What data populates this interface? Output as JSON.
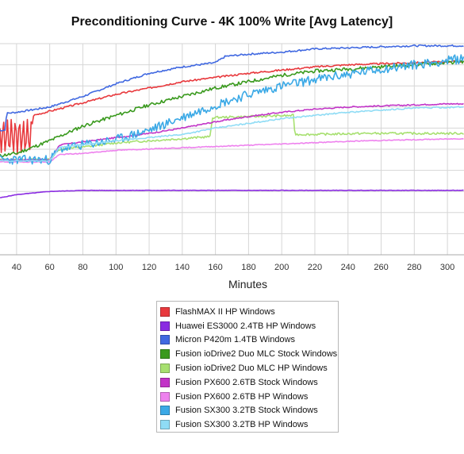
{
  "chart_data": {
    "type": "line",
    "title": "Preconditioning Curve - 4K 100% Write [Avg Latency]",
    "xlabel": "Minutes",
    "ylabel": "",
    "xlim": [
      30,
      310
    ],
    "ylim": [
      0,
      10
    ],
    "xticks": [
      40,
      60,
      80,
      100,
      120,
      140,
      160,
      180,
      200,
      220,
      240,
      260,
      280,
      300
    ],
    "grid": true,
    "legend": "bottom-center",
    "series": [
      {
        "name": "FlashMAX II HP Windows",
        "color": "#e8393d",
        "x": [
          30,
          40,
          49,
          50,
          60,
          80,
          100,
          120,
          140,
          160,
          180,
          200,
          220,
          240,
          260,
          280,
          300,
          310
        ],
        "y": [
          5.6,
          5.6,
          5.6,
          6.6,
          6.8,
          7.2,
          7.6,
          7.9,
          8.2,
          8.4,
          8.6,
          8.75,
          8.9,
          9.0,
          9.05,
          9.1,
          9.15,
          9.15
        ],
        "noise": 0.04,
        "seed": 3,
        "osc": {
          "from": 30,
          "to": 50,
          "amp": 0.8
        }
      },
      {
        "name": "Huawei ES3000 2.4TB HP Windows",
        "color": "#8a2be2",
        "x": [
          30,
          40,
          60,
          80,
          100,
          150,
          200,
          250,
          310
        ],
        "y": [
          2.7,
          2.85,
          3.0,
          3.05,
          3.05,
          3.05,
          3.05,
          3.05,
          3.05
        ],
        "noise": 0.01,
        "seed": 5
      },
      {
        "name": "Micron P420m 1.4TB Windows",
        "color": "#4169e1",
        "x": [
          30,
          33,
          34,
          40,
          60,
          80,
          100,
          120,
          140,
          160,
          166,
          180,
          200,
          220,
          240,
          260,
          280,
          300,
          310
        ],
        "y": [
          5.9,
          5.9,
          6.7,
          6.75,
          7.0,
          7.5,
          8.1,
          8.6,
          8.9,
          9.1,
          9.4,
          9.5,
          9.6,
          9.75,
          9.8,
          9.85,
          9.9,
          9.9,
          9.9
        ],
        "noise": 0.04,
        "seed": 7
      },
      {
        "name": "Fusion ioDrive2 Duo MLC Stock Windows",
        "color": "#3a9a1e",
        "x": [
          30,
          40,
          50,
          60,
          80,
          100,
          120,
          140,
          160,
          180,
          200,
          220,
          240,
          260,
          280,
          300,
          310
        ],
        "y": [
          4.7,
          4.8,
          5.1,
          5.4,
          6.1,
          6.6,
          7.1,
          7.5,
          7.9,
          8.2,
          8.5,
          8.7,
          8.8,
          8.9,
          9.0,
          9.1,
          9.15
        ],
        "noise": 0.08,
        "seed": 11
      },
      {
        "name": "Fusion ioDrive2 Duo MLC HP Windows",
        "color": "#a7e070",
        "x": [
          30,
          60,
          66,
          80,
          100,
          120,
          140,
          157,
          158,
          207,
          208,
          220,
          250,
          280,
          310
        ],
        "y": [
          4.5,
          4.5,
          5.0,
          5.1,
          5.3,
          5.4,
          5.5,
          5.6,
          6.5,
          6.6,
          5.7,
          5.7,
          5.75,
          5.75,
          5.75
        ],
        "noise": 0.05,
        "seed": 13
      },
      {
        "name": "Fusion PX600 2.6TB Stock Windows",
        "color": "#c234c7",
        "x": [
          30,
          60,
          66,
          80,
          100,
          120,
          140,
          160,
          180,
          200,
          220,
          240,
          260,
          280,
          300,
          310
        ],
        "y": [
          4.5,
          4.5,
          5.2,
          5.35,
          5.55,
          5.75,
          6.0,
          6.3,
          6.55,
          6.75,
          6.9,
          7.0,
          7.05,
          7.1,
          7.15,
          7.15
        ],
        "noise": 0.03,
        "seed": 17
      },
      {
        "name": "Fusion PX600 2.6TB HP Windows",
        "color": "#ee82ee",
        "x": [
          30,
          60,
          66,
          80,
          100,
          150,
          200,
          250,
          310
        ],
        "y": [
          4.4,
          4.4,
          4.75,
          4.8,
          4.95,
          5.1,
          5.25,
          5.4,
          5.5
        ],
        "noise": 0.02,
        "seed": 19
      },
      {
        "name": "Fusion SX300 3.2TB Stock Windows",
        "color": "#3ba9e6",
        "x": [
          30,
          60,
          66,
          80,
          100,
          120,
          140,
          160,
          180,
          200,
          220,
          240,
          260,
          280,
          300,
          310
        ],
        "y": [
          4.5,
          4.5,
          5.0,
          5.2,
          5.45,
          5.9,
          6.5,
          7.1,
          7.6,
          8.0,
          8.3,
          8.55,
          8.8,
          9.0,
          9.2,
          9.3
        ],
        "noise": 0.22,
        "seed": 23
      },
      {
        "name": "Fusion SX300 3.2TB HP Windows",
        "color": "#8fdcf5",
        "x": [
          30,
          60,
          66,
          80,
          100,
          140,
          160,
          200,
          240,
          280,
          310
        ],
        "y": [
          4.45,
          4.45,
          5.1,
          5.2,
          5.4,
          5.7,
          6.0,
          6.45,
          6.75,
          6.95,
          7.0
        ],
        "noise": 0.03,
        "seed": 29
      }
    ]
  }
}
